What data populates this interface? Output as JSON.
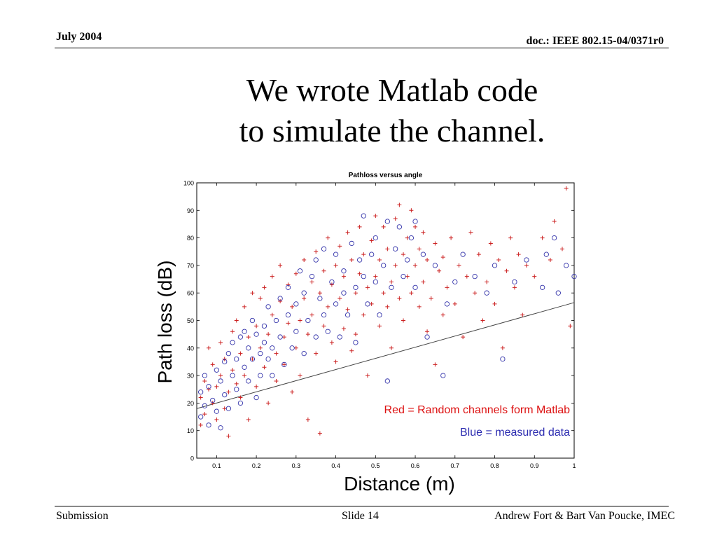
{
  "header": {
    "date": "July 2004",
    "doc": "doc.: IEEE 802.15-04/0371r0"
  },
  "slide": {
    "title_line1": "We wrote Matlab code",
    "title_line2": "to simulate the channel."
  },
  "footer": {
    "left": "Submission",
    "slide": "Slide 14",
    "authors": "Andrew Fort & Bart Van Poucke, IMEC"
  },
  "chart_data": {
    "type": "scatter",
    "title": "Pathloss versus angle",
    "xlabel": "Distance (m)",
    "ylabel": "Path loss (dB)",
    "xlim": [
      0.05,
      1.0
    ],
    "ylim": [
      0,
      100
    ],
    "xticks": [
      "0.1",
      "0.2",
      "0.3",
      "0.4",
      "0.5",
      "0.6",
      "0.7",
      "0.8",
      "0.9",
      "1"
    ],
    "yticks": [
      "0",
      "10",
      "20",
      "30",
      "40",
      "50",
      "60",
      "70",
      "80",
      "90",
      "100"
    ],
    "grid": false,
    "annotations": [
      {
        "text": "Red = Random channels form Matlab",
        "color": "#dd1111"
      },
      {
        "text": "Blue = measured data",
        "color": "#2b2bb0"
      }
    ],
    "fit_line": {
      "x": [
        0.05,
        1.0
      ],
      "y": [
        18,
        56.5
      ],
      "color": "#444444"
    },
    "series": [
      {
        "marker": "plus",
        "color": "#cc2222",
        "points": [
          [
            0.06,
            12
          ],
          [
            0.06,
            22
          ],
          [
            0.07,
            28
          ],
          [
            0.07,
            16
          ],
          [
            0.08,
            40
          ],
          [
            0.08,
            25
          ],
          [
            0.09,
            20
          ],
          [
            0.09,
            34
          ],
          [
            0.1,
            14
          ],
          [
            0.1,
            26
          ],
          [
            0.11,
            30
          ],
          [
            0.11,
            42
          ],
          [
            0.12,
            18
          ],
          [
            0.12,
            36
          ],
          [
            0.13,
            24
          ],
          [
            0.13,
            8
          ],
          [
            0.14,
            46
          ],
          [
            0.14,
            32
          ],
          [
            0.15,
            27
          ],
          [
            0.15,
            50
          ],
          [
            0.16,
            38
          ],
          [
            0.16,
            22
          ],
          [
            0.17,
            55
          ],
          [
            0.17,
            30
          ],
          [
            0.18,
            44
          ],
          [
            0.18,
            14
          ],
          [
            0.19,
            60
          ],
          [
            0.19,
            36
          ],
          [
            0.2,
            48
          ],
          [
            0.2,
            26
          ],
          [
            0.21,
            58
          ],
          [
            0.21,
            40
          ],
          [
            0.22,
            33
          ],
          [
            0.22,
            62
          ],
          [
            0.23,
            45
          ],
          [
            0.23,
            20
          ],
          [
            0.24,
            52
          ],
          [
            0.24,
            66
          ],
          [
            0.25,
            38
          ],
          [
            0.25,
            28
          ],
          [
            0.26,
            57
          ],
          [
            0.26,
            70
          ],
          [
            0.27,
            44
          ],
          [
            0.27,
            34
          ],
          [
            0.28,
            63
          ],
          [
            0.28,
            49
          ],
          [
            0.29,
            24
          ],
          [
            0.29,
            55
          ],
          [
            0.3,
            67
          ],
          [
            0.3,
            40
          ],
          [
            0.31,
            50
          ],
          [
            0.31,
            30
          ],
          [
            0.32,
            72
          ],
          [
            0.32,
            58
          ],
          [
            0.33,
            45
          ],
          [
            0.33,
            14
          ],
          [
            0.34,
            64
          ],
          [
            0.34,
            52
          ],
          [
            0.35,
            75
          ],
          [
            0.35,
            38
          ],
          [
            0.36,
            60
          ],
          [
            0.36,
            9
          ],
          [
            0.37,
            68
          ],
          [
            0.37,
            48
          ],
          [
            0.38,
            55
          ],
          [
            0.38,
            80
          ],
          [
            0.39,
            42
          ],
          [
            0.39,
            63
          ],
          [
            0.4,
            70
          ],
          [
            0.4,
            35
          ],
          [
            0.41,
            58
          ],
          [
            0.41,
            77
          ],
          [
            0.42,
            47
          ],
          [
            0.42,
            66
          ],
          [
            0.43,
            82
          ],
          [
            0.43,
            54
          ],
          [
            0.44,
            39
          ],
          [
            0.44,
            72
          ],
          [
            0.45,
            60
          ],
          [
            0.45,
            45
          ],
          [
            0.46,
            84
          ],
          [
            0.46,
            67
          ],
          [
            0.47,
            52
          ],
          [
            0.47,
            74
          ],
          [
            0.48,
            62
          ],
          [
            0.48,
            30
          ],
          [
            0.49,
            79
          ],
          [
            0.49,
            56
          ],
          [
            0.5,
            88
          ],
          [
            0.5,
            66
          ],
          [
            0.51,
            48
          ],
          [
            0.51,
            72
          ],
          [
            0.52,
            60
          ],
          [
            0.52,
            84
          ],
          [
            0.53,
            55
          ],
          [
            0.53,
            76
          ],
          [
            0.54,
            64
          ],
          [
            0.54,
            40
          ],
          [
            0.55,
            87
          ],
          [
            0.55,
            70
          ],
          [
            0.56,
            58
          ],
          [
            0.56,
            92
          ],
          [
            0.57,
            74
          ],
          [
            0.57,
            50
          ],
          [
            0.58,
            80
          ],
          [
            0.58,
            66
          ],
          [
            0.59,
            90
          ],
          [
            0.59,
            60
          ],
          [
            0.6,
            84
          ],
          [
            0.6,
            70
          ],
          [
            0.61,
            55
          ],
          [
            0.61,
            76
          ],
          [
            0.62,
            64
          ],
          [
            0.62,
            82
          ],
          [
            0.63,
            46
          ],
          [
            0.63,
            72
          ],
          [
            0.64,
            58
          ],
          [
            0.65,
            78
          ],
          [
            0.65,
            34
          ],
          [
            0.66,
            68
          ],
          [
            0.67,
            52
          ],
          [
            0.67,
            73
          ],
          [
            0.68,
            62
          ],
          [
            0.69,
            80
          ],
          [
            0.7,
            56
          ],
          [
            0.71,
            70
          ],
          [
            0.72,
            44
          ],
          [
            0.73,
            66
          ],
          [
            0.74,
            82
          ],
          [
            0.75,
            60
          ],
          [
            0.76,
            74
          ],
          [
            0.77,
            50
          ],
          [
            0.78,
            64
          ],
          [
            0.79,
            78
          ],
          [
            0.8,
            56
          ],
          [
            0.81,
            72
          ],
          [
            0.82,
            40
          ],
          [
            0.83,
            68
          ],
          [
            0.84,
            80
          ],
          [
            0.85,
            62
          ],
          [
            0.86,
            74
          ],
          [
            0.87,
            52
          ],
          [
            0.88,
            70
          ],
          [
            0.9,
            66
          ],
          [
            0.92,
            80
          ],
          [
            0.94,
            72
          ],
          [
            0.95,
            86
          ],
          [
            0.97,
            76
          ],
          [
            0.98,
            98
          ],
          [
            0.99,
            48
          ]
        ]
      },
      {
        "marker": "circle",
        "color": "#3333aa",
        "points": [
          [
            0.06,
            15
          ],
          [
            0.06,
            24
          ],
          [
            0.07,
            19
          ],
          [
            0.07,
            30
          ],
          [
            0.08,
            12
          ],
          [
            0.08,
            26
          ],
          [
            0.09,
            21
          ],
          [
            0.1,
            32
          ],
          [
            0.1,
            17
          ],
          [
            0.11,
            28
          ],
          [
            0.11,
            11
          ],
          [
            0.12,
            35
          ],
          [
            0.12,
            23
          ],
          [
            0.13,
            38
          ],
          [
            0.13,
            18
          ],
          [
            0.14,
            30
          ],
          [
            0.14,
            42
          ],
          [
            0.15,
            25
          ],
          [
            0.15,
            36
          ],
          [
            0.16,
            44
          ],
          [
            0.16,
            20
          ],
          [
            0.17,
            33
          ],
          [
            0.17,
            46
          ],
          [
            0.18,
            28
          ],
          [
            0.18,
            40
          ],
          [
            0.19,
            36
          ],
          [
            0.19,
            50
          ],
          [
            0.2,
            22
          ],
          [
            0.2,
            45
          ],
          [
            0.21,
            38
          ],
          [
            0.21,
            30
          ],
          [
            0.22,
            48
          ],
          [
            0.22,
            42
          ],
          [
            0.23,
            36
          ],
          [
            0.23,
            55
          ],
          [
            0.24,
            40
          ],
          [
            0.24,
            30
          ],
          [
            0.25,
            50
          ],
          [
            0.26,
            44
          ],
          [
            0.26,
            58
          ],
          [
            0.27,
            34
          ],
          [
            0.28,
            52
          ],
          [
            0.28,
            62
          ],
          [
            0.29,
            40
          ],
          [
            0.3,
            56
          ],
          [
            0.3,
            46
          ],
          [
            0.31,
            68
          ],
          [
            0.32,
            38
          ],
          [
            0.32,
            60
          ],
          [
            0.33,
            50
          ],
          [
            0.34,
            66
          ],
          [
            0.35,
            44
          ],
          [
            0.35,
            72
          ],
          [
            0.36,
            58
          ],
          [
            0.37,
            52
          ],
          [
            0.37,
            76
          ],
          [
            0.38,
            46
          ],
          [
            0.39,
            64
          ],
          [
            0.4,
            56
          ],
          [
            0.4,
            74
          ],
          [
            0.41,
            44
          ],
          [
            0.42,
            68
          ],
          [
            0.42,
            60
          ],
          [
            0.43,
            52
          ],
          [
            0.44,
            78
          ],
          [
            0.45,
            62
          ],
          [
            0.45,
            42
          ],
          [
            0.46,
            72
          ],
          [
            0.47,
            66
          ],
          [
            0.47,
            88
          ],
          [
            0.48,
            56
          ],
          [
            0.49,
            74
          ],
          [
            0.5,
            64
          ],
          [
            0.5,
            80
          ],
          [
            0.51,
            52
          ],
          [
            0.52,
            70
          ],
          [
            0.53,
            86
          ],
          [
            0.53,
            28
          ],
          [
            0.54,
            62
          ],
          [
            0.55,
            76
          ],
          [
            0.56,
            84
          ],
          [
            0.57,
            66
          ],
          [
            0.58,
            72
          ],
          [
            0.59,
            80
          ],
          [
            0.6,
            62
          ],
          [
            0.6,
            86
          ],
          [
            0.62,
            74
          ],
          [
            0.63,
            44
          ],
          [
            0.65,
            70
          ],
          [
            0.67,
            30
          ],
          [
            0.68,
            56
          ],
          [
            0.7,
            64
          ],
          [
            0.72,
            74
          ],
          [
            0.75,
            66
          ],
          [
            0.78,
            60
          ],
          [
            0.8,
            70
          ],
          [
            0.82,
            36
          ],
          [
            0.85,
            64
          ],
          [
            0.88,
            72
          ],
          [
            0.92,
            62
          ],
          [
            0.93,
            74
          ],
          [
            0.95,
            80
          ],
          [
            0.96,
            60
          ],
          [
            0.98,
            70
          ],
          [
            1.0,
            66
          ]
        ]
      }
    ]
  }
}
